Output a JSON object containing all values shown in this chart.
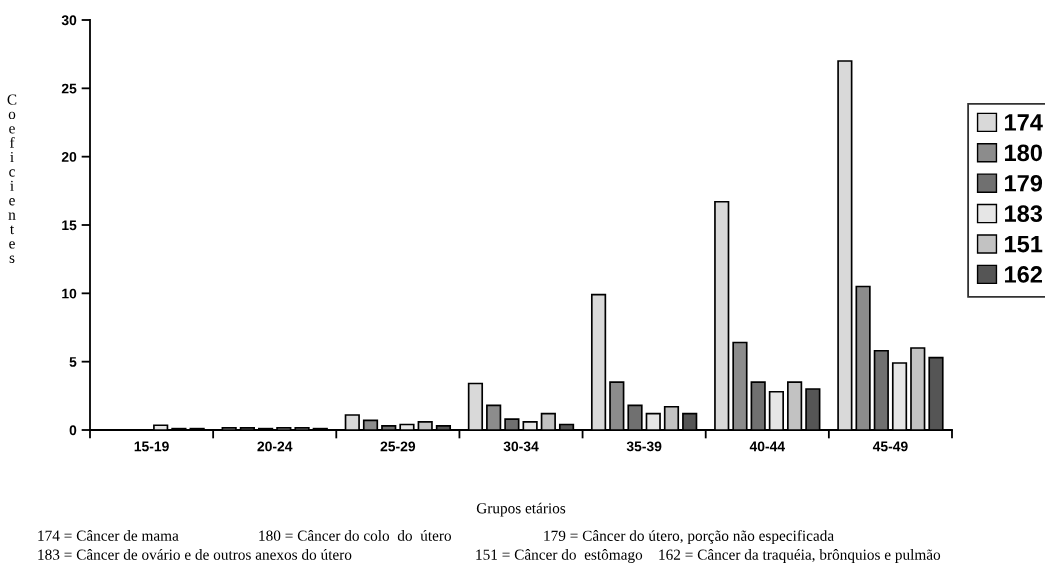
{
  "chart_data": {
    "type": "bar",
    "xlabel": "Grupos etários",
    "ylabel": "Coeficientes",
    "categories": [
      "15-19",
      "20-24",
      "25-29",
      "30-34",
      "35-39",
      "40-44",
      "45-49"
    ],
    "series": [
      {
        "name": "174",
        "color": "#d9d9d9",
        "values": [
          null,
          0.15,
          1.1,
          3.4,
          9.9,
          16.7,
          27.0
        ]
      },
      {
        "name": "180",
        "color": "#8c8c8c",
        "values": [
          null,
          0.15,
          0.7,
          1.8,
          3.5,
          6.4,
          10.5
        ]
      },
      {
        "name": "179",
        "color": "#707070",
        "values": [
          null,
          0.1,
          0.3,
          0.8,
          1.8,
          3.5,
          5.8
        ]
      },
      {
        "name": "183",
        "color": "#e6e6e6",
        "values": [
          0.35,
          0.15,
          0.4,
          0.6,
          1.2,
          2.8,
          4.9
        ]
      },
      {
        "name": "151",
        "color": "#c2c2c2",
        "values": [
          0.1,
          0.15,
          0.6,
          1.2,
          1.7,
          3.5,
          6.0
        ]
      },
      {
        "name": "162",
        "color": "#555555",
        "values": [
          0.1,
          0.1,
          0.3,
          0.4,
          1.2,
          3.0,
          5.3
        ]
      }
    ],
    "ylim": [
      0,
      30
    ],
    "yticks": [
      0,
      5,
      10,
      15,
      20,
      25,
      30
    ],
    "grid": false,
    "legend": "right",
    "annotations": [
      "174 = Câncer de mama",
      "180 = Câncer do colo  do  útero",
      "179 = Câncer do útero, porção não especificada",
      "183 = Câncer de ovário e de outros anexos do útero",
      "151 = Câncer do  estômago",
      "162 = Câncer da traquéia, brônquios e pulmão"
    ]
  }
}
